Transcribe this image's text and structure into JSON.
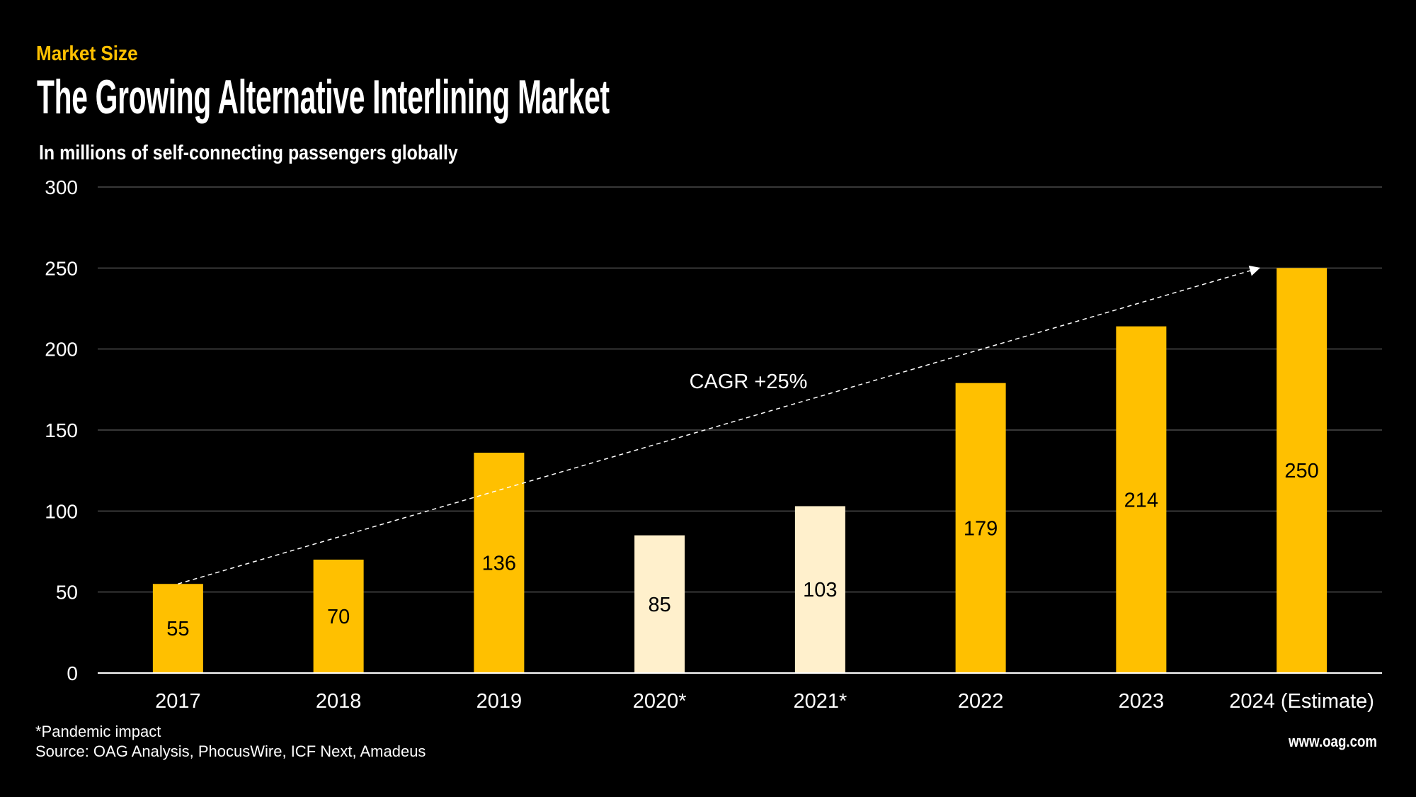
{
  "header": {
    "kicker": "Market Size",
    "title": "The Growing Alternative Interlining Market",
    "subtitle": "In millions of self-connecting passengers globally"
  },
  "chart_data": {
    "type": "bar",
    "title": "The Growing Alternative Interlining Market",
    "ylabel": "In millions of self-connecting passengers globally",
    "categories": [
      "2017",
      "2018",
      "2019",
      "2020*",
      "2021*",
      "2022",
      "2023",
      "2024 (Estimate)"
    ],
    "values": [
      55,
      70,
      136,
      85,
      103,
      179,
      214,
      250
    ],
    "data_labels": [
      "55",
      "70",
      "136",
      "85",
      "103",
      "179",
      "214",
      "250"
    ],
    "highlighted_pandemic": [
      false,
      false,
      false,
      true,
      true,
      false,
      false,
      false
    ],
    "ylim": [
      0,
      300
    ],
    "yticks": [
      0,
      50,
      100,
      150,
      200,
      250,
      300
    ],
    "grid": true,
    "colors": {
      "normal": "#FFC000",
      "pandemic": "#FFF0CC",
      "background": "#000000",
      "grid": "#4a4a4a"
    },
    "annotation": {
      "text": "CAGR +25%",
      "from_category": "2017",
      "from_value": 55,
      "to_category": "2024 (Estimate)",
      "to_value": 250
    }
  },
  "footer": {
    "note": "*Pandemic impact",
    "source": "Source: OAG Analysis, PhocusWire, ICF Next, Amadeus",
    "brand": "www.oag.com"
  }
}
